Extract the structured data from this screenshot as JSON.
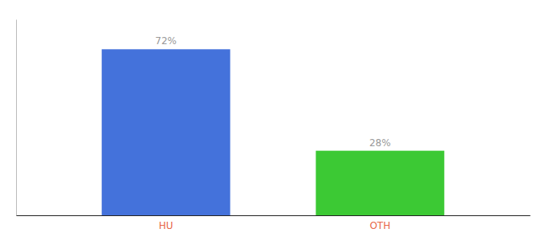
{
  "chart_data": {
    "type": "bar",
    "categories": [
      "HU",
      "OTH"
    ],
    "values": [
      72,
      28
    ],
    "value_labels": [
      "72%",
      "28%"
    ],
    "colors": [
      "#4472DB",
      "#3CC934"
    ],
    "ylim": [
      0,
      85
    ],
    "data_labels": true,
    "tick_labels": "x",
    "grid": false
  }
}
